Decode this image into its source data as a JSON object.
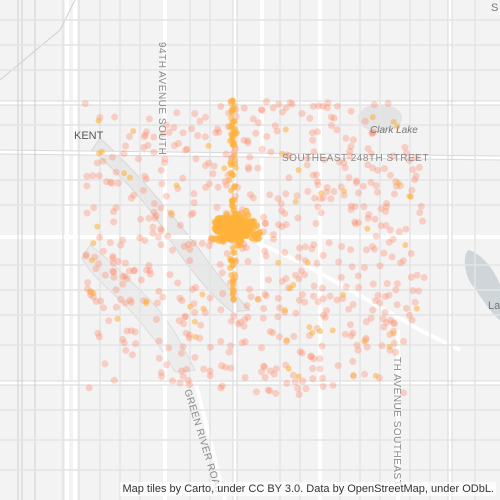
{
  "map": {
    "labels": {
      "kent": "KENT",
      "clark_lake": "Clark Lake",
      "se_248th": "SOUTHEAST 248TH STREET",
      "ave_94th": "94TH AVENUE SOUTH",
      "green_river_road": "GREEN RIVER ROAD",
      "ave_se_right": "TH AVENUE SOUTHEAST",
      "edge_s": "S",
      "edge_la": "La"
    },
    "attribution": "Map tiles by Carto, under CC BY 3.0. Data by OpenStreetMap, under ODbL.",
    "colors": {
      "background": "#f3f3f3",
      "road_major": "#ffffff",
      "road_outline": "#dcdcdc",
      "water": "#d4dadc",
      "park": "#e6e6e6",
      "point_dense": "#ffb13a",
      "point_sparse": "#ff8a6a"
    }
  }
}
